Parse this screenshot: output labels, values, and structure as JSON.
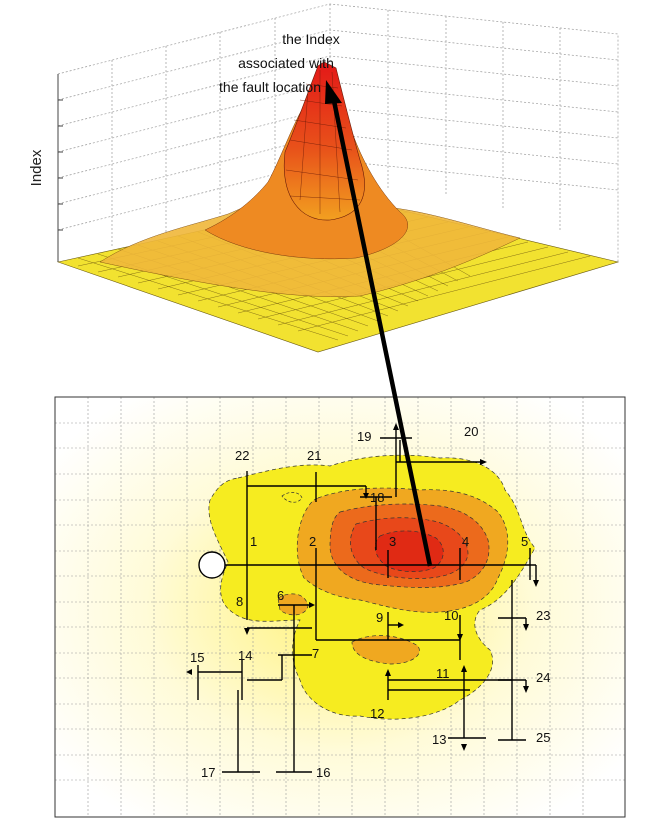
{
  "surface": {
    "zlabel": "Index",
    "annotation_lines": [
      "the Index",
      "associated with",
      "the fault location"
    ]
  },
  "buses": [
    {
      "id": "1",
      "label": "1"
    },
    {
      "id": "2",
      "label": "2"
    },
    {
      "id": "3",
      "label": "3"
    },
    {
      "id": "4",
      "label": "4"
    },
    {
      "id": "5",
      "label": "5"
    },
    {
      "id": "6",
      "label": "6"
    },
    {
      "id": "7",
      "label": "7"
    },
    {
      "id": "8",
      "label": "8"
    },
    {
      "id": "9",
      "label": "9"
    },
    {
      "id": "10",
      "label": "10"
    },
    {
      "id": "11",
      "label": "11"
    },
    {
      "id": "12",
      "label": "12"
    },
    {
      "id": "13",
      "label": "13"
    },
    {
      "id": "14",
      "label": "14"
    },
    {
      "id": "15",
      "label": "15"
    },
    {
      "id": "16",
      "label": "16"
    },
    {
      "id": "17",
      "label": "17"
    },
    {
      "id": "18",
      "label": "18"
    },
    {
      "id": "19",
      "label": "19"
    },
    {
      "id": "20",
      "label": "20"
    },
    {
      "id": "21",
      "label": "21"
    },
    {
      "id": "22",
      "label": "22"
    },
    {
      "id": "23",
      "label": "23"
    },
    {
      "id": "24",
      "label": "24"
    },
    {
      "id": "25",
      "label": "25"
    }
  ],
  "colors": {
    "peak": "#e01010",
    "mid": "#f07a10",
    "low": "#f5e31c",
    "background_glow": "#fff7c8",
    "arrow": "#000000"
  }
}
